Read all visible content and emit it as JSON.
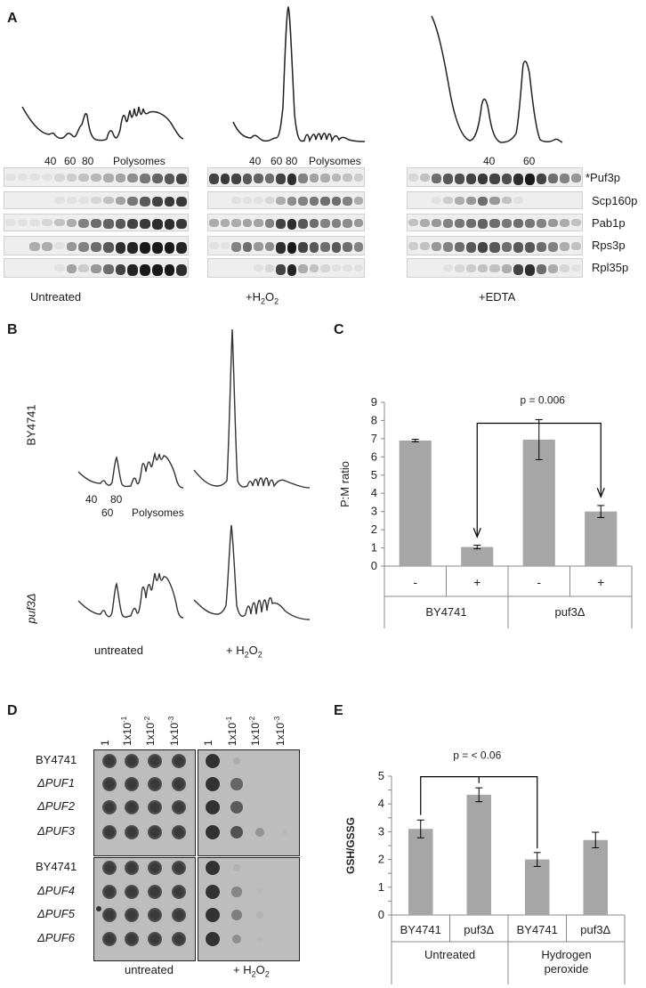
{
  "panels": {
    "A": "A",
    "B": "B",
    "C": "C",
    "D": "D",
    "E": "E"
  },
  "panelA": {
    "groups": [
      {
        "label": "Untreated",
        "ticks": [
          "40",
          "60",
          "80",
          "Polysomes"
        ]
      },
      {
        "label": "+H2O2",
        "ticks": [
          "40",
          "60",
          "80",
          "Polysomes"
        ]
      },
      {
        "label": "+EDTA",
        "ticks": [
          "40",
          "60"
        ]
      }
    ],
    "h2o2_prefix": "+H",
    "h2o2_sub1": "2",
    "h2o2_o": "O",
    "h2o2_sub2": "2",
    "proteins": [
      "*Puf3p",
      "Scp160p",
      "Pab1p",
      "Rps3p",
      "Rpl35p"
    ]
  },
  "panelB": {
    "strains": [
      "BY4741",
      "puf3Δ"
    ],
    "ticks": {
      "t40": "40",
      "t60": "60",
      "t80": "80",
      "poly": "Polysomes"
    },
    "conditions": {
      "untreated": "untreated",
      "h2o2_prefix": "+ H",
      "sub1": "2",
      "o": "O",
      "sub2": "2"
    }
  },
  "chart_data": [
    {
      "type": "bar",
      "panel": "C",
      "ylabel": "P:M ratio",
      "ylim": [
        0,
        9
      ],
      "yticks": [
        0,
        1,
        2,
        3,
        4,
        5,
        6,
        7,
        8,
        9
      ],
      "categories": [
        "-",
        "+",
        "-",
        "+"
      ],
      "groups": [
        "BY4741",
        "puf3Δ"
      ],
      "values": [
        6.9,
        1.05,
        6.95,
        3.0
      ],
      "errors": [
        0.07,
        0.1,
        1.1,
        0.33
      ],
      "annotation": "p = 0.006",
      "bar_color": "#a6a6a6"
    },
    {
      "type": "bar",
      "panel": "E",
      "ylabel": "GSH/GSSG",
      "ylim": [
        0,
        5
      ],
      "yticks": [
        0,
        0.5,
        1,
        1.5,
        2,
        2.5,
        3,
        3.5,
        4,
        4.5,
        5
      ],
      "yticklabels": [
        "0",
        "",
        "1",
        "",
        "2",
        "",
        "3",
        "",
        "4",
        "",
        "5"
      ],
      "categories": [
        "BY4741",
        "puf3Δ",
        "BY4741",
        "puf3Δ"
      ],
      "groups": [
        "Untreated",
        "Hydrogen peroxide"
      ],
      "values": [
        3.1,
        4.33,
        2.0,
        2.7
      ],
      "errors": [
        0.32,
        0.25,
        0.25,
        0.28
      ],
      "annotation": "p = < 0.06",
      "bar_color": "#a6a6a6"
    }
  ],
  "panelD": {
    "dilutions": [
      "1",
      "1x10-1",
      "1x10-2",
      "1x10-3"
    ],
    "dilution_base": "1x10",
    "exps": [
      "-1",
      "-2",
      "-3"
    ],
    "strains_top": [
      "BY4741",
      "ΔPUF1",
      "ΔPUF2",
      "ΔPUF3"
    ],
    "strains_bottom": [
      "BY4741",
      "ΔPUF4",
      "ΔPUF5",
      "ΔPUF6"
    ],
    "untreated": "untreated",
    "h2o2_prefix": "+ H",
    "sub1": "2",
    "o": "O",
    "sub2": "2",
    "growth_h2o2": [
      [
        1,
        0.25,
        0,
        0
      ],
      [
        1,
        0.75,
        0,
        0
      ],
      [
        1,
        0.8,
        0,
        0
      ],
      [
        1,
        0.85,
        0.45,
        0.15
      ],
      [
        1,
        0.2,
        0,
        0
      ],
      [
        1,
        0.55,
        0.15,
        0
      ],
      [
        1,
        0.6,
        0.2,
        0
      ],
      [
        1,
        0.5,
        0.15,
        0
      ]
    ]
  }
}
